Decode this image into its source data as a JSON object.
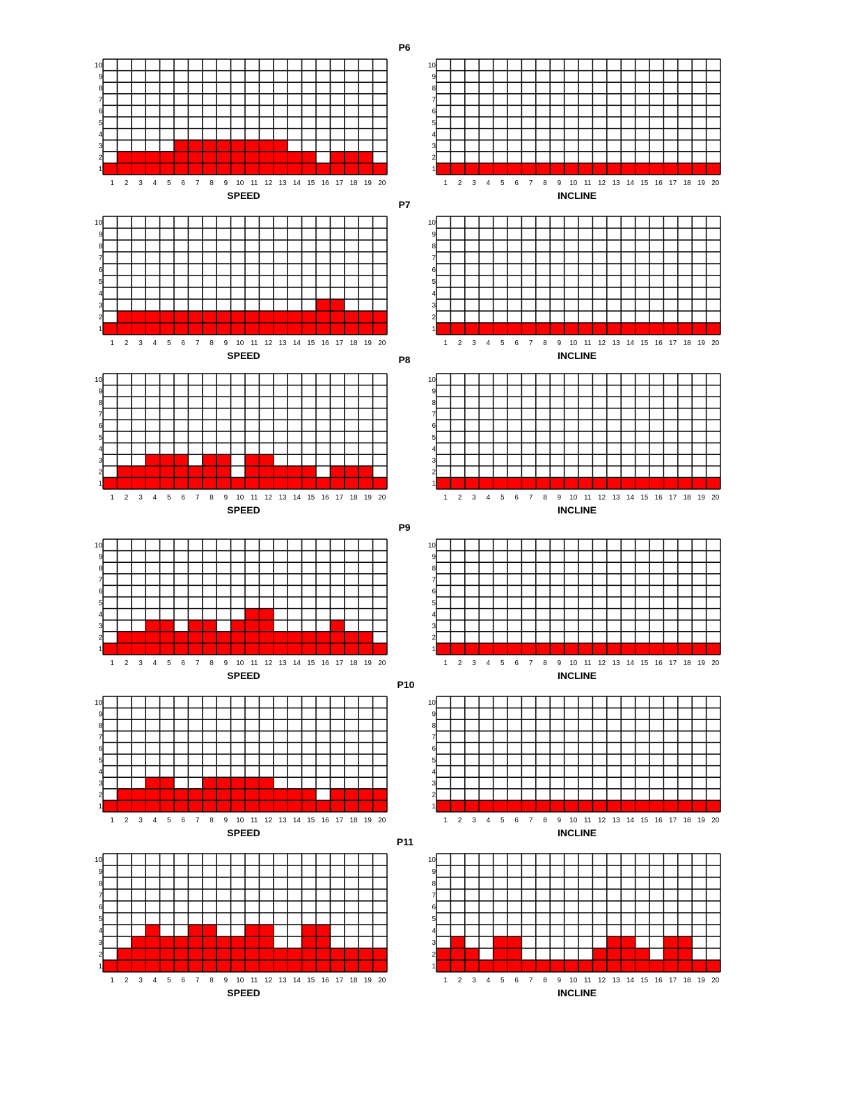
{
  "chart_data": [
    {
      "type": "bar",
      "title": "P6",
      "xlabel": "SPEED",
      "categories": [
        1,
        2,
        3,
        4,
        5,
        6,
        7,
        8,
        9,
        10,
        11,
        12,
        13,
        14,
        15,
        16,
        17,
        18,
        19,
        20
      ],
      "values": [
        1,
        2,
        2,
        2,
        2,
        3,
        3,
        3,
        3,
        3,
        3,
        3,
        3,
        2,
        2,
        1,
        2,
        2,
        2,
        1
      ],
      "ylim": [
        0,
        10
      ],
      "yticks": [
        1,
        2,
        3,
        4,
        5,
        6,
        7,
        8,
        9,
        10
      ],
      "grid": true
    },
    {
      "type": "bar",
      "title": "",
      "xlabel": "INCLINE",
      "categories": [
        1,
        2,
        3,
        4,
        5,
        6,
        7,
        8,
        9,
        10,
        11,
        12,
        13,
        14,
        15,
        16,
        17,
        18,
        19,
        20
      ],
      "values": [
        1,
        1,
        1,
        1,
        1,
        1,
        1,
        1,
        1,
        1,
        1,
        1,
        1,
        1,
        1,
        1,
        1,
        1,
        1,
        1
      ],
      "ylim": [
        0,
        10
      ],
      "yticks": [
        1,
        2,
        3,
        4,
        5,
        6,
        7,
        8,
        9,
        10
      ],
      "grid": true
    },
    {
      "type": "bar",
      "title": "P7",
      "xlabel": "SPEED",
      "categories": [
        1,
        2,
        3,
        4,
        5,
        6,
        7,
        8,
        9,
        10,
        11,
        12,
        13,
        14,
        15,
        16,
        17,
        18,
        19,
        20
      ],
      "values": [
        1,
        2,
        2,
        2,
        2,
        2,
        2,
        2,
        2,
        2,
        2,
        2,
        2,
        2,
        2,
        3,
        3,
        2,
        2,
        2
      ],
      "ylim": [
        0,
        10
      ],
      "yticks": [
        1,
        2,
        3,
        4,
        5,
        6,
        7,
        8,
        9,
        10
      ],
      "grid": true
    },
    {
      "type": "bar",
      "title": "",
      "xlabel": "INCLINE",
      "categories": [
        1,
        2,
        3,
        4,
        5,
        6,
        7,
        8,
        9,
        10,
        11,
        12,
        13,
        14,
        15,
        16,
        17,
        18,
        19,
        20
      ],
      "values": [
        1,
        1,
        1,
        1,
        1,
        1,
        1,
        1,
        1,
        1,
        1,
        1,
        1,
        1,
        1,
        1,
        1,
        1,
        1,
        1
      ],
      "ylim": [
        0,
        10
      ],
      "yticks": [
        1,
        2,
        3,
        4,
        5,
        6,
        7,
        8,
        9,
        10
      ],
      "grid": true
    },
    {
      "type": "bar",
      "title": "P8",
      "xlabel": "SPEED",
      "categories": [
        1,
        2,
        3,
        4,
        5,
        6,
        7,
        8,
        9,
        10,
        11,
        12,
        13,
        14,
        15,
        16,
        17,
        18,
        19,
        20
      ],
      "values": [
        1,
        2,
        2,
        3,
        3,
        3,
        2,
        3,
        3,
        1,
        3,
        3,
        2,
        2,
        2,
        1,
        2,
        2,
        2,
        1
      ],
      "ylim": [
        0,
        10
      ],
      "yticks": [
        1,
        2,
        3,
        4,
        5,
        6,
        7,
        8,
        9,
        10
      ],
      "grid": true
    },
    {
      "type": "bar",
      "title": "",
      "xlabel": "INCLINE",
      "categories": [
        1,
        2,
        3,
        4,
        5,
        6,
        7,
        8,
        9,
        10,
        11,
        12,
        13,
        14,
        15,
        16,
        17,
        18,
        19,
        20
      ],
      "values": [
        1,
        1,
        1,
        1,
        1,
        1,
        1,
        1,
        1,
        1,
        1,
        1,
        1,
        1,
        1,
        1,
        1,
        1,
        1,
        1
      ],
      "ylim": [
        0,
        10
      ],
      "yticks": [
        1,
        2,
        3,
        4,
        5,
        6,
        7,
        8,
        9,
        10
      ],
      "grid": true
    },
    {
      "type": "bar",
      "title": "P9",
      "xlabel": "SPEED",
      "categories": [
        1,
        2,
        3,
        4,
        5,
        6,
        7,
        8,
        9,
        10,
        11,
        12,
        13,
        14,
        15,
        16,
        17,
        18,
        19,
        20
      ],
      "values": [
        1,
        2,
        2,
        3,
        3,
        2,
        3,
        3,
        2,
        3,
        4,
        4,
        2,
        2,
        2,
        2,
        3,
        2,
        2,
        1
      ],
      "ylim": [
        0,
        10
      ],
      "yticks": [
        1,
        2,
        3,
        4,
        5,
        6,
        7,
        8,
        9,
        10
      ],
      "grid": true
    },
    {
      "type": "bar",
      "title": "",
      "xlabel": "INCLINE",
      "categories": [
        1,
        2,
        3,
        4,
        5,
        6,
        7,
        8,
        9,
        10,
        11,
        12,
        13,
        14,
        15,
        16,
        17,
        18,
        19,
        20
      ],
      "values": [
        1,
        1,
        1,
        1,
        1,
        1,
        1,
        1,
        1,
        1,
        1,
        1,
        1,
        1,
        1,
        1,
        1,
        1,
        1,
        1
      ],
      "ylim": [
        0,
        10
      ],
      "yticks": [
        1,
        2,
        3,
        4,
        5,
        6,
        7,
        8,
        9,
        10
      ],
      "grid": true
    },
    {
      "type": "bar",
      "title": "P10",
      "xlabel": "SPEED",
      "categories": [
        1,
        2,
        3,
        4,
        5,
        6,
        7,
        8,
        9,
        10,
        11,
        12,
        13,
        14,
        15,
        16,
        17,
        18,
        19,
        20
      ],
      "values": [
        1,
        2,
        2,
        3,
        3,
        2,
        2,
        3,
        3,
        3,
        3,
        3,
        2,
        2,
        2,
        1,
        2,
        2,
        2,
        2
      ],
      "ylim": [
        0,
        10
      ],
      "yticks": [
        1,
        2,
        3,
        4,
        5,
        6,
        7,
        8,
        9,
        10
      ],
      "grid": true
    },
    {
      "type": "bar",
      "title": "",
      "xlabel": "INCLINE",
      "categories": [
        1,
        2,
        3,
        4,
        5,
        6,
        7,
        8,
        9,
        10,
        11,
        12,
        13,
        14,
        15,
        16,
        17,
        18,
        19,
        20
      ],
      "values": [
        1,
        1,
        1,
        1,
        1,
        1,
        1,
        1,
        1,
        1,
        1,
        1,
        1,
        1,
        1,
        1,
        1,
        1,
        1,
        1
      ],
      "ylim": [
        0,
        10
      ],
      "yticks": [
        1,
        2,
        3,
        4,
        5,
        6,
        7,
        8,
        9,
        10
      ],
      "grid": true
    },
    {
      "type": "bar",
      "title": "P11",
      "xlabel": "SPEED",
      "categories": [
        1,
        2,
        3,
        4,
        5,
        6,
        7,
        8,
        9,
        10,
        11,
        12,
        13,
        14,
        15,
        16,
        17,
        18,
        19,
        20
      ],
      "values": [
        1,
        2,
        3,
        4,
        3,
        3,
        4,
        4,
        3,
        3,
        4,
        4,
        2,
        2,
        4,
        4,
        2,
        2,
        2,
        2
      ],
      "ylim": [
        0,
        10
      ],
      "yticks": [
        1,
        2,
        3,
        4,
        5,
        6,
        7,
        8,
        9,
        10
      ],
      "grid": true
    },
    {
      "type": "bar",
      "title": "",
      "xlabel": "INCLINE",
      "categories": [
        1,
        2,
        3,
        4,
        5,
        6,
        7,
        8,
        9,
        10,
        11,
        12,
        13,
        14,
        15,
        16,
        17,
        18,
        19,
        20
      ],
      "values": [
        2,
        3,
        2,
        1,
        3,
        3,
        1,
        1,
        1,
        1,
        1,
        2,
        3,
        3,
        2,
        1,
        3,
        3,
        1,
        1
      ],
      "ylim": [
        0,
        10
      ],
      "yticks": [
        1,
        2,
        3,
        4,
        5,
        6,
        7,
        8,
        9,
        10
      ],
      "grid": true
    }
  ],
  "colors": {
    "bar": "#ff0000",
    "grid": "#000000",
    "background": "#ffffff"
  }
}
